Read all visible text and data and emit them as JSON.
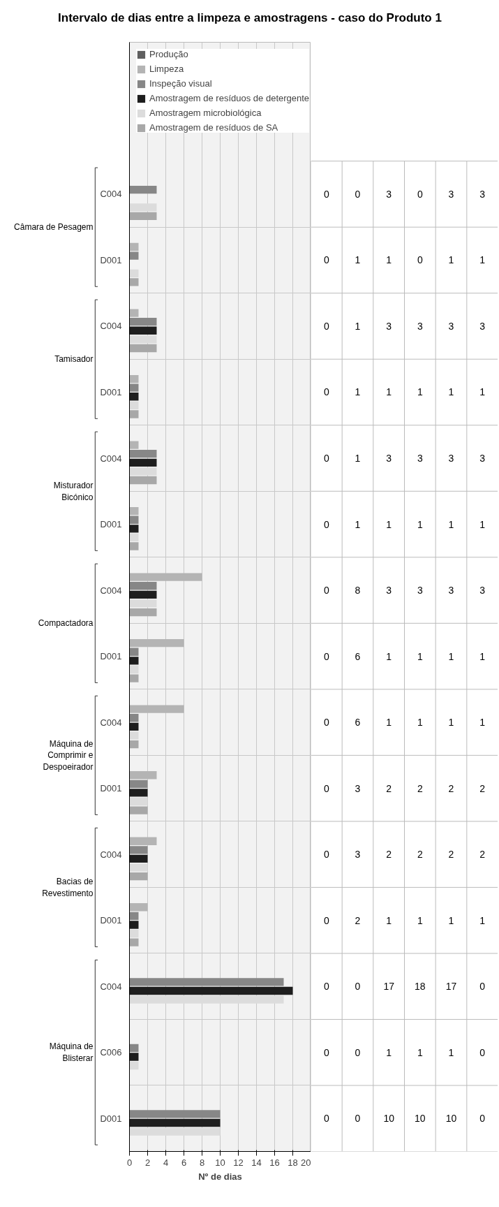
{
  "chart_data": {
    "type": "bar",
    "orientation": "horizontal",
    "title": "Intervalo de dias entre a limpeza e amostragens - caso do Produto 1",
    "xlabel": "Nº de dias",
    "categories": [
      "C004",
      "D001",
      "C004",
      "D001",
      "C004",
      "D001",
      "C004",
      "D001",
      "C004",
      "D001",
      "C004",
      "D001",
      "C004",
      "C006",
      "D001"
    ],
    "series": [
      {
        "name": "Produção",
        "color": "#5f5f5f",
        "values": [
          0,
          0,
          0,
          0,
          0,
          0,
          0,
          0,
          0,
          0,
          0,
          0,
          0,
          0,
          0
        ]
      },
      {
        "name": "Limpeza",
        "color": "#b4b4b4",
        "values": [
          0,
          1,
          1,
          1,
          1,
          1,
          8,
          6,
          6,
          3,
          3,
          2,
          0,
          0,
          0
        ]
      },
      {
        "name": "Inspeção visual",
        "color": "#878787",
        "values": [
          3,
          1,
          3,
          1,
          3,
          1,
          3,
          1,
          1,
          2,
          2,
          1,
          17,
          1,
          10
        ]
      },
      {
        "name": "Amostragem de resíduos de detergente",
        "color": "#1e1e1e",
        "values": [
          0,
          0,
          3,
          1,
          3,
          1,
          3,
          1,
          1,
          2,
          2,
          1,
          18,
          1,
          10
        ]
      },
      {
        "name": "Amostragem microbiológica",
        "color": "#dcdcdc",
        "values": [
          3,
          1,
          3,
          1,
          3,
          1,
          3,
          1,
          1,
          2,
          2,
          1,
          17,
          1,
          10
        ]
      },
      {
        "name": "Amostragem de resíduos de SA",
        "color": "#a8a8a8",
        "values": [
          3,
          1,
          3,
          1,
          3,
          1,
          3,
          1,
          1,
          2,
          2,
          1,
          0,
          0,
          0
        ]
      }
    ],
    "xlim": [
      0,
      20
    ],
    "xticks": [
      0,
      2,
      4,
      6,
      8,
      10,
      12,
      14,
      16,
      18,
      20
    ],
    "grid": true,
    "legend": "top left",
    "data_labels": true,
    "annotations": [
      "Câmara de Pesagem",
      "Tamisador",
      "Misturador Bicónico",
      "Compactadora",
      "Máquina de Comprimir e Despoeirador",
      "Bacias de Revestimento",
      "Máquina de Blisterar"
    ]
  }
}
